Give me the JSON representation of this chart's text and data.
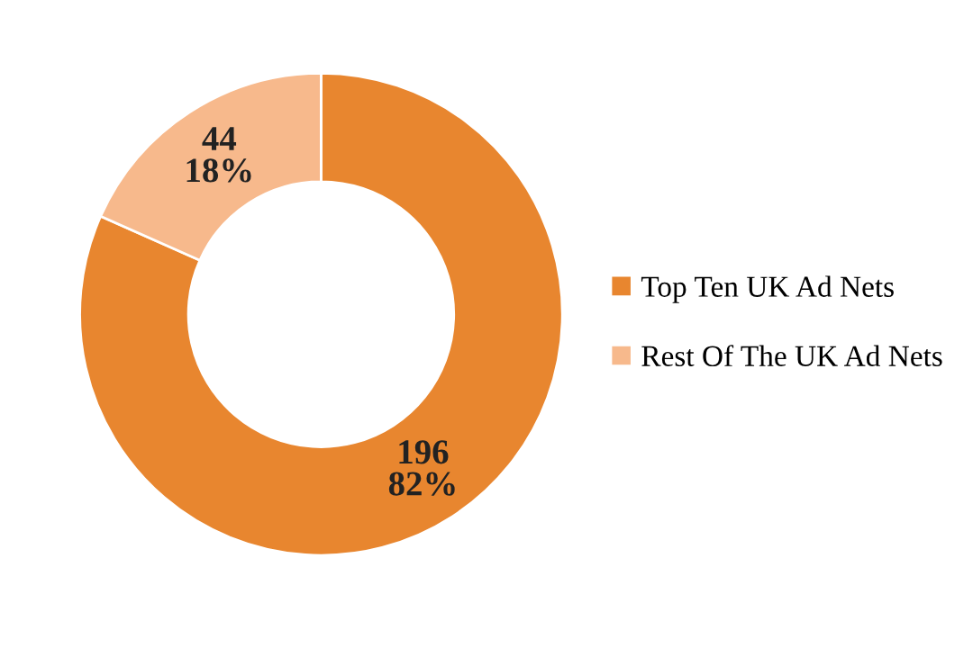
{
  "chart_data": {
    "type": "donut",
    "categories": [
      "Top Ten UK Ad Nets",
      "Rest Of The UK Ad Nets"
    ],
    "values": [
      196,
      44
    ],
    "colors": [
      "#e8862f",
      "#f7b98c"
    ],
    "value_labels": [
      "196\n82%",
      "44\n18%"
    ],
    "legend": "right"
  }
}
